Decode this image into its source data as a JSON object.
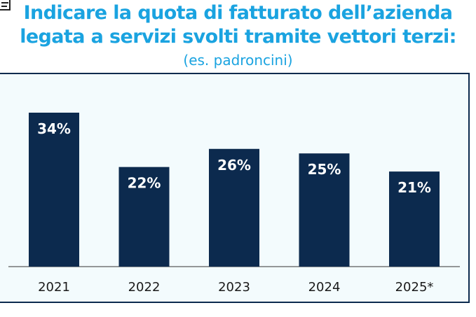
{
  "title_line1": "Indicare la quota di fatturato dell’azienda",
  "title_line2": "legata a servizi svolti tramite vettori terzi:",
  "subtitle": "(es. padroncini)",
  "colors": {
    "title": "#1aa3e0",
    "bar": "#0c2a4e",
    "panel_bg": "#f3fbfd",
    "value_label": "#ffffff",
    "axis_label": "#1a1a1a"
  },
  "chart_data": {
    "type": "bar",
    "categories": [
      "2021",
      "2022",
      "2023",
      "2024",
      "2025*"
    ],
    "values": [
      34,
      22,
      26,
      25,
      21
    ],
    "value_labels": [
      "34%",
      "22%",
      "26%",
      "25%",
      "21%"
    ],
    "ylim": [
      0,
      34
    ],
    "grid": false,
    "legend": "none"
  }
}
